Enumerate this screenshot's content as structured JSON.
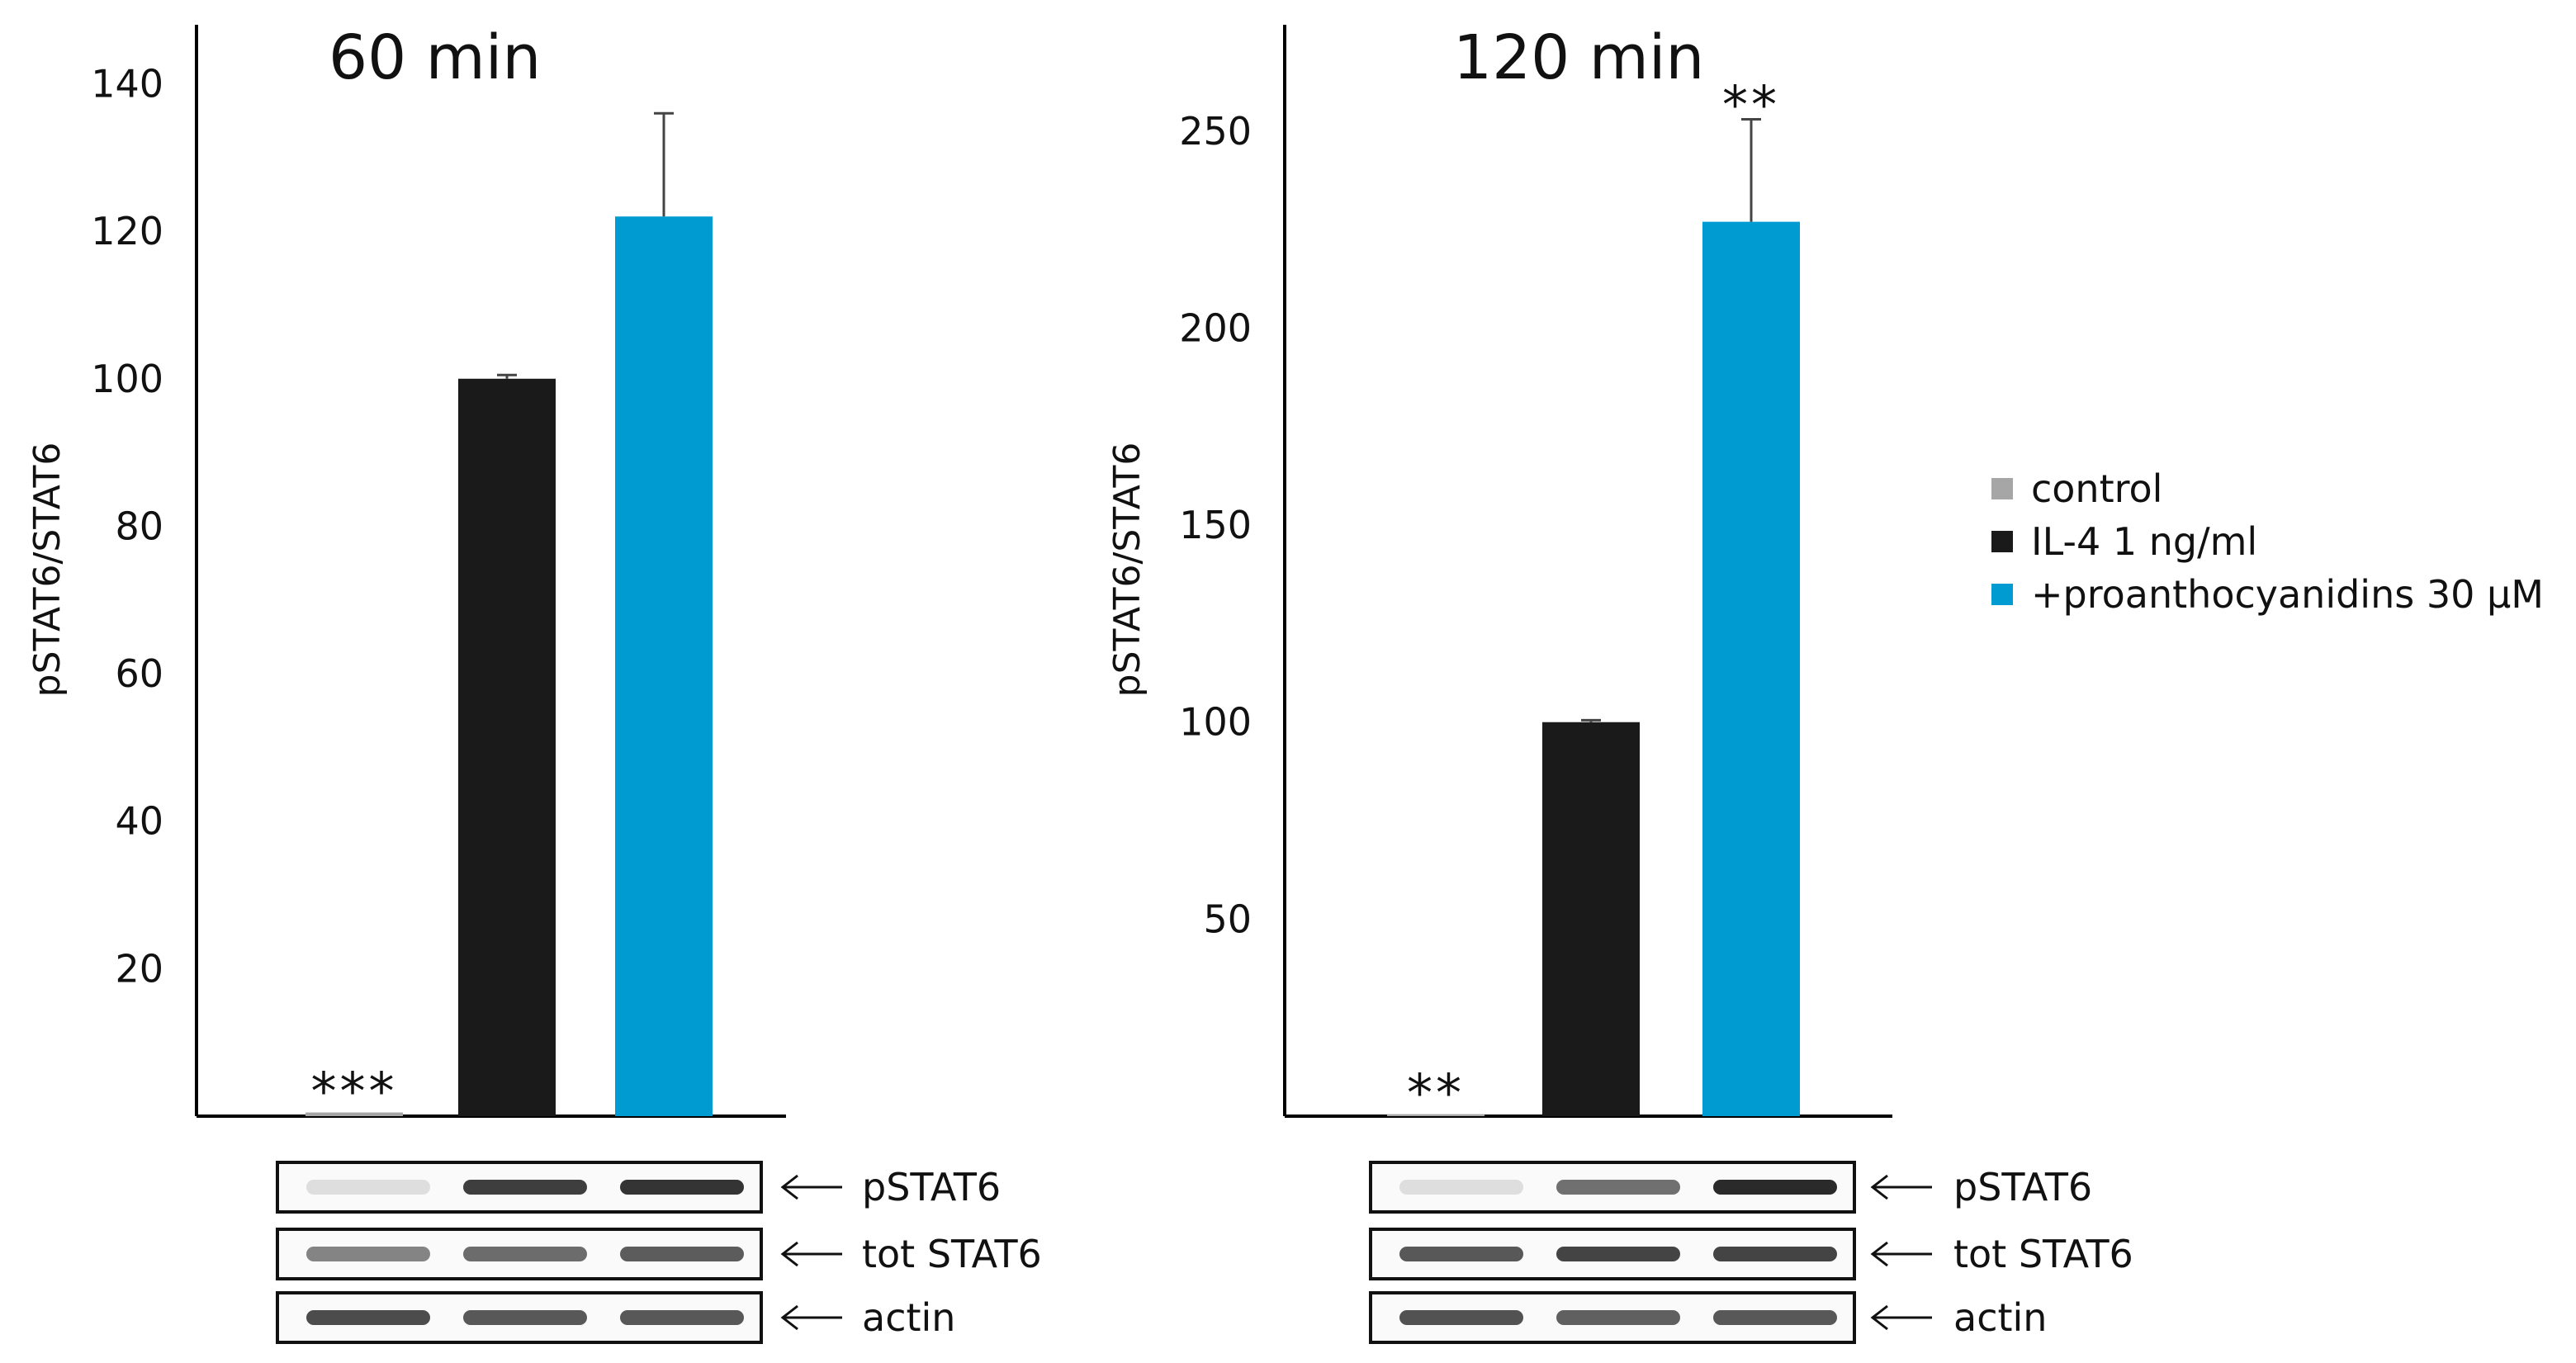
{
  "colors": {
    "control": "#a6a6a6",
    "il4": "#1a1a1a",
    "pac": "#009bd0"
  },
  "legend": [
    {
      "label": "control",
      "color": "#a6a6a6"
    },
    {
      "label": "IL-4 1 ng/ml",
      "color": "#1a1a1a"
    },
    {
      "label": "+proanthocyanidins 30 µM",
      "color": "#009bd0"
    }
  ],
  "blot_labels": [
    "pSTAT6",
    "tot STAT6",
    "actin"
  ],
  "chart_data": [
    {
      "type": "bar",
      "title": "60 min",
      "xlabel": "",
      "ylabel": "pSTAT6/STAT6",
      "ylim": [
        0,
        148
      ],
      "yticks": [
        20,
        40,
        60,
        80,
        100,
        120,
        140
      ],
      "categories": [
        "control",
        "IL-4 1 ng/ml",
        "+proanthocyanidins 30 µM"
      ],
      "values": [
        0.5,
        100,
        122
      ],
      "errors": [
        0,
        0.5,
        14
      ],
      "annotations": [
        "***",
        "",
        ""
      ]
    },
    {
      "type": "bar",
      "title": "120 min",
      "xlabel": "",
      "ylabel": "pSTAT6/STAT6",
      "ylim": [
        0,
        277
      ],
      "yticks": [
        50,
        100,
        150,
        200,
        250
      ],
      "categories": [
        "control",
        "IL-4 1 ng/ml",
        "+proanthocyanidins 30 µM"
      ],
      "values": [
        0.5,
        100,
        227
      ],
      "errors": [
        0,
        0.5,
        26
      ],
      "annotations": [
        "**",
        "",
        "**"
      ]
    }
  ]
}
